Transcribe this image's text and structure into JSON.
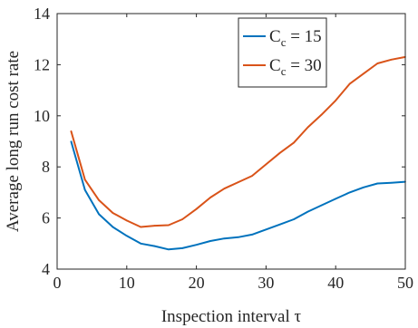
{
  "chart_data": {
    "type": "line",
    "xlabel": "Inspection interval τ",
    "ylabel": "Average long run cost rate",
    "xlim": [
      0,
      50
    ],
    "ylim": [
      4,
      14
    ],
    "xticks": [
      0,
      10,
      20,
      30,
      40,
      50
    ],
    "yticks": [
      4,
      6,
      8,
      10,
      12,
      14
    ],
    "grid": false,
    "legend_position": "top-right",
    "x": [
      2,
      4,
      6,
      8,
      10,
      12,
      14,
      16,
      18,
      20,
      22,
      24,
      26,
      28,
      30,
      32,
      34,
      36,
      38,
      40,
      42,
      44,
      46,
      48,
      50
    ],
    "series": [
      {
        "name": "C_c = 15",
        "legend_main": "C",
        "legend_sub": "c",
        "legend_rest": " = 15",
        "color": "#0072BD",
        "values": [
          9.0,
          7.1,
          6.15,
          5.65,
          5.3,
          5.0,
          4.9,
          4.77,
          4.82,
          4.95,
          5.1,
          5.2,
          5.25,
          5.35,
          5.55,
          5.75,
          5.95,
          6.25,
          6.5,
          6.75,
          7.0,
          7.2,
          7.35,
          7.38,
          7.42
        ]
      },
      {
        "name": "C_c = 30",
        "legend_main": "C",
        "legend_sub": "c",
        "legend_rest": " = 30",
        "color": "#D95319",
        "values": [
          9.4,
          7.5,
          6.7,
          6.2,
          5.9,
          5.65,
          5.7,
          5.72,
          5.95,
          6.35,
          6.8,
          7.15,
          7.4,
          7.65,
          8.1,
          8.55,
          8.95,
          9.55,
          10.05,
          10.6,
          11.25,
          11.65,
          12.05,
          12.2,
          12.3
        ]
      }
    ]
  }
}
